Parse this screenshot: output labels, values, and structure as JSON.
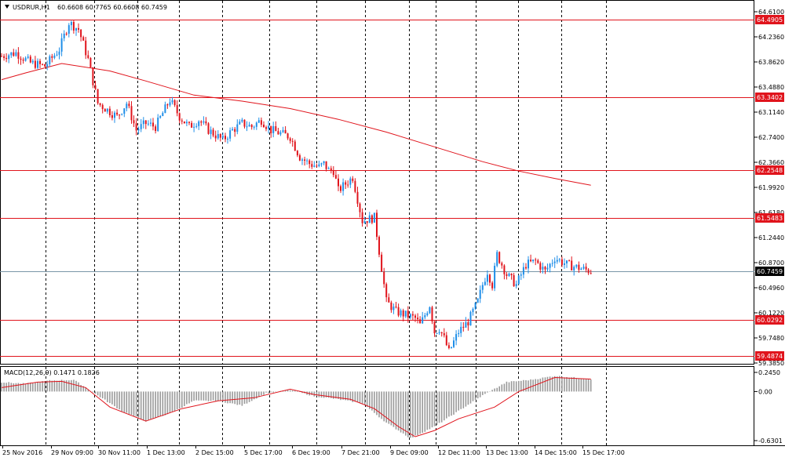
{
  "header": {
    "symbol": "USDRUR,H1",
    "ohlc": "60.6608 60.7765 60.6608 60.7459"
  },
  "colors": {
    "bull": "#1e8ee8",
    "bear": "#e0141c",
    "level": "#e0141c",
    "ma": "#e0141c",
    "current_line": "#7a96a8",
    "grid": "#000000",
    "histogram": "#9a9a9a",
    "signal": "#e0141c"
  },
  "chart_data": [
    {
      "type": "candlestick",
      "title": "",
      "y_ticks": [
        "64.6100",
        "64.2360",
        "63.8620",
        "63.4880",
        "63.1140",
        "62.7400",
        "62.3660",
        "61.9920",
        "61.6180",
        "61.2440",
        "60.8700",
        "60.4960",
        "60.1220",
        "59.7480",
        "59.3850"
      ],
      "ylim": [
        59.385,
        64.61
      ],
      "x_ticks": [
        "25 Nov 2016",
        "29 Nov 09:00",
        "30 Nov 11:00",
        "1 Dec 13:00",
        "2 Dec 15:00",
        "5 Dec 17:00",
        "6 Dec 19:00",
        "7 Dec 21:00",
        "9 Dec 09:00",
        "12 Dec 11:00",
        "13 Dec 13:00",
        "14 Dec 15:00",
        "15 Dec 17:00"
      ],
      "grid": "vertical dashed",
      "levels": [
        {
          "label": "64.4905",
          "value": 64.4905
        },
        {
          "label": "63.3402",
          "value": 63.3402
        },
        {
          "label": "62.2548",
          "value": 62.2548
        },
        {
          "label": "61.5483",
          "value": 61.5483
        },
        {
          "label": "60.0292",
          "value": 60.0292
        },
        {
          "label": "59.4874",
          "value": 59.4874
        }
      ],
      "current_price": {
        "label": "60.7459",
        "value": 60.7459
      },
      "moving_average": {
        "t": [
          0,
          10,
          25,
          45,
          60,
          80,
          100,
          120,
          140,
          160,
          180,
          200,
          215,
          230,
          245
        ],
        "values": [
          63.6,
          63.7,
          63.84,
          63.73,
          63.58,
          63.37,
          63.28,
          63.17,
          63.01,
          62.82,
          62.6,
          62.38,
          62.24,
          62.13,
          62.03
        ]
      },
      "candle_path": {
        "t": [
          0,
          6,
          12,
          18,
          24,
          28,
          32,
          36,
          40,
          44,
          48,
          52,
          56,
          60,
          64,
          70,
          74,
          78,
          82,
          86,
          92,
          96,
          100,
          104,
          108,
          112,
          116,
          120,
          124,
          128,
          132,
          134,
          136,
          138,
          140,
          143,
          146,
          150,
          155,
          160,
          164,
          168,
          172,
          174,
          176,
          178,
          180,
          182,
          184,
          186,
          190,
          194,
          198,
          200,
          202,
          204,
          206,
          210,
          214,
          218,
          222,
          226,
          230,
          235,
          240,
          245
        ],
        "close": [
          63.95,
          64.0,
          63.85,
          63.8,
          64.05,
          64.45,
          64.35,
          63.9,
          63.25,
          63.15,
          63.05,
          63.25,
          62.85,
          62.95,
          62.9,
          63.3,
          63.05,
          62.9,
          63.0,
          62.85,
          62.7,
          62.85,
          62.95,
          62.9,
          63.0,
          62.85,
          62.8,
          62.75,
          62.45,
          62.35,
          62.3,
          62.35,
          62.25,
          62.25,
          61.95,
          62.05,
          62.15,
          61.5,
          61.55,
          60.3,
          60.15,
          60.1,
          60.05,
          59.95,
          60.1,
          60.25,
          59.85,
          59.9,
          59.75,
          59.55,
          59.85,
          60.0,
          60.3,
          60.55,
          60.75,
          60.55,
          61.0,
          60.7,
          60.55,
          60.85,
          60.9,
          60.75,
          60.95,
          60.85,
          60.8,
          60.75
        ]
      }
    },
    {
      "type": "bar",
      "title": "MACD(12,26,9) 0.1471 0.1826",
      "y_ticks": [
        "0.2450",
        "0.00",
        "-0.6301"
      ],
      "ylim": [
        -0.6301,
        0.245
      ],
      "histogram": {
        "t": [
          0,
          10,
          20,
          30,
          40,
          50,
          60,
          70,
          80,
          90,
          100,
          110,
          120,
          130,
          140,
          150,
          160,
          170,
          180,
          190,
          200,
          210,
          220,
          230,
          245
        ],
        "values": [
          0.12,
          0.1,
          0.14,
          0.15,
          -0.05,
          -0.25,
          -0.38,
          -0.28,
          -0.12,
          -0.12,
          -0.18,
          -0.02,
          0.02,
          -0.06,
          -0.1,
          -0.15,
          -0.4,
          -0.6,
          -0.45,
          -0.25,
          -0.05,
          0.12,
          0.15,
          0.2,
          0.16
        ]
      },
      "signal": {
        "t": [
          0,
          15,
          25,
          35,
          45,
          60,
          75,
          90,
          105,
          120,
          130,
          145,
          155,
          165,
          172,
          180,
          190,
          205,
          215,
          230,
          245
        ],
        "values": [
          0.05,
          0.12,
          0.13,
          0.05,
          -0.2,
          -0.38,
          -0.22,
          -0.12,
          -0.08,
          0.03,
          -0.04,
          -0.1,
          -0.22,
          -0.45,
          -0.58,
          -0.5,
          -0.35,
          -0.2,
          0.0,
          0.18,
          0.16
        ]
      }
    }
  ]
}
